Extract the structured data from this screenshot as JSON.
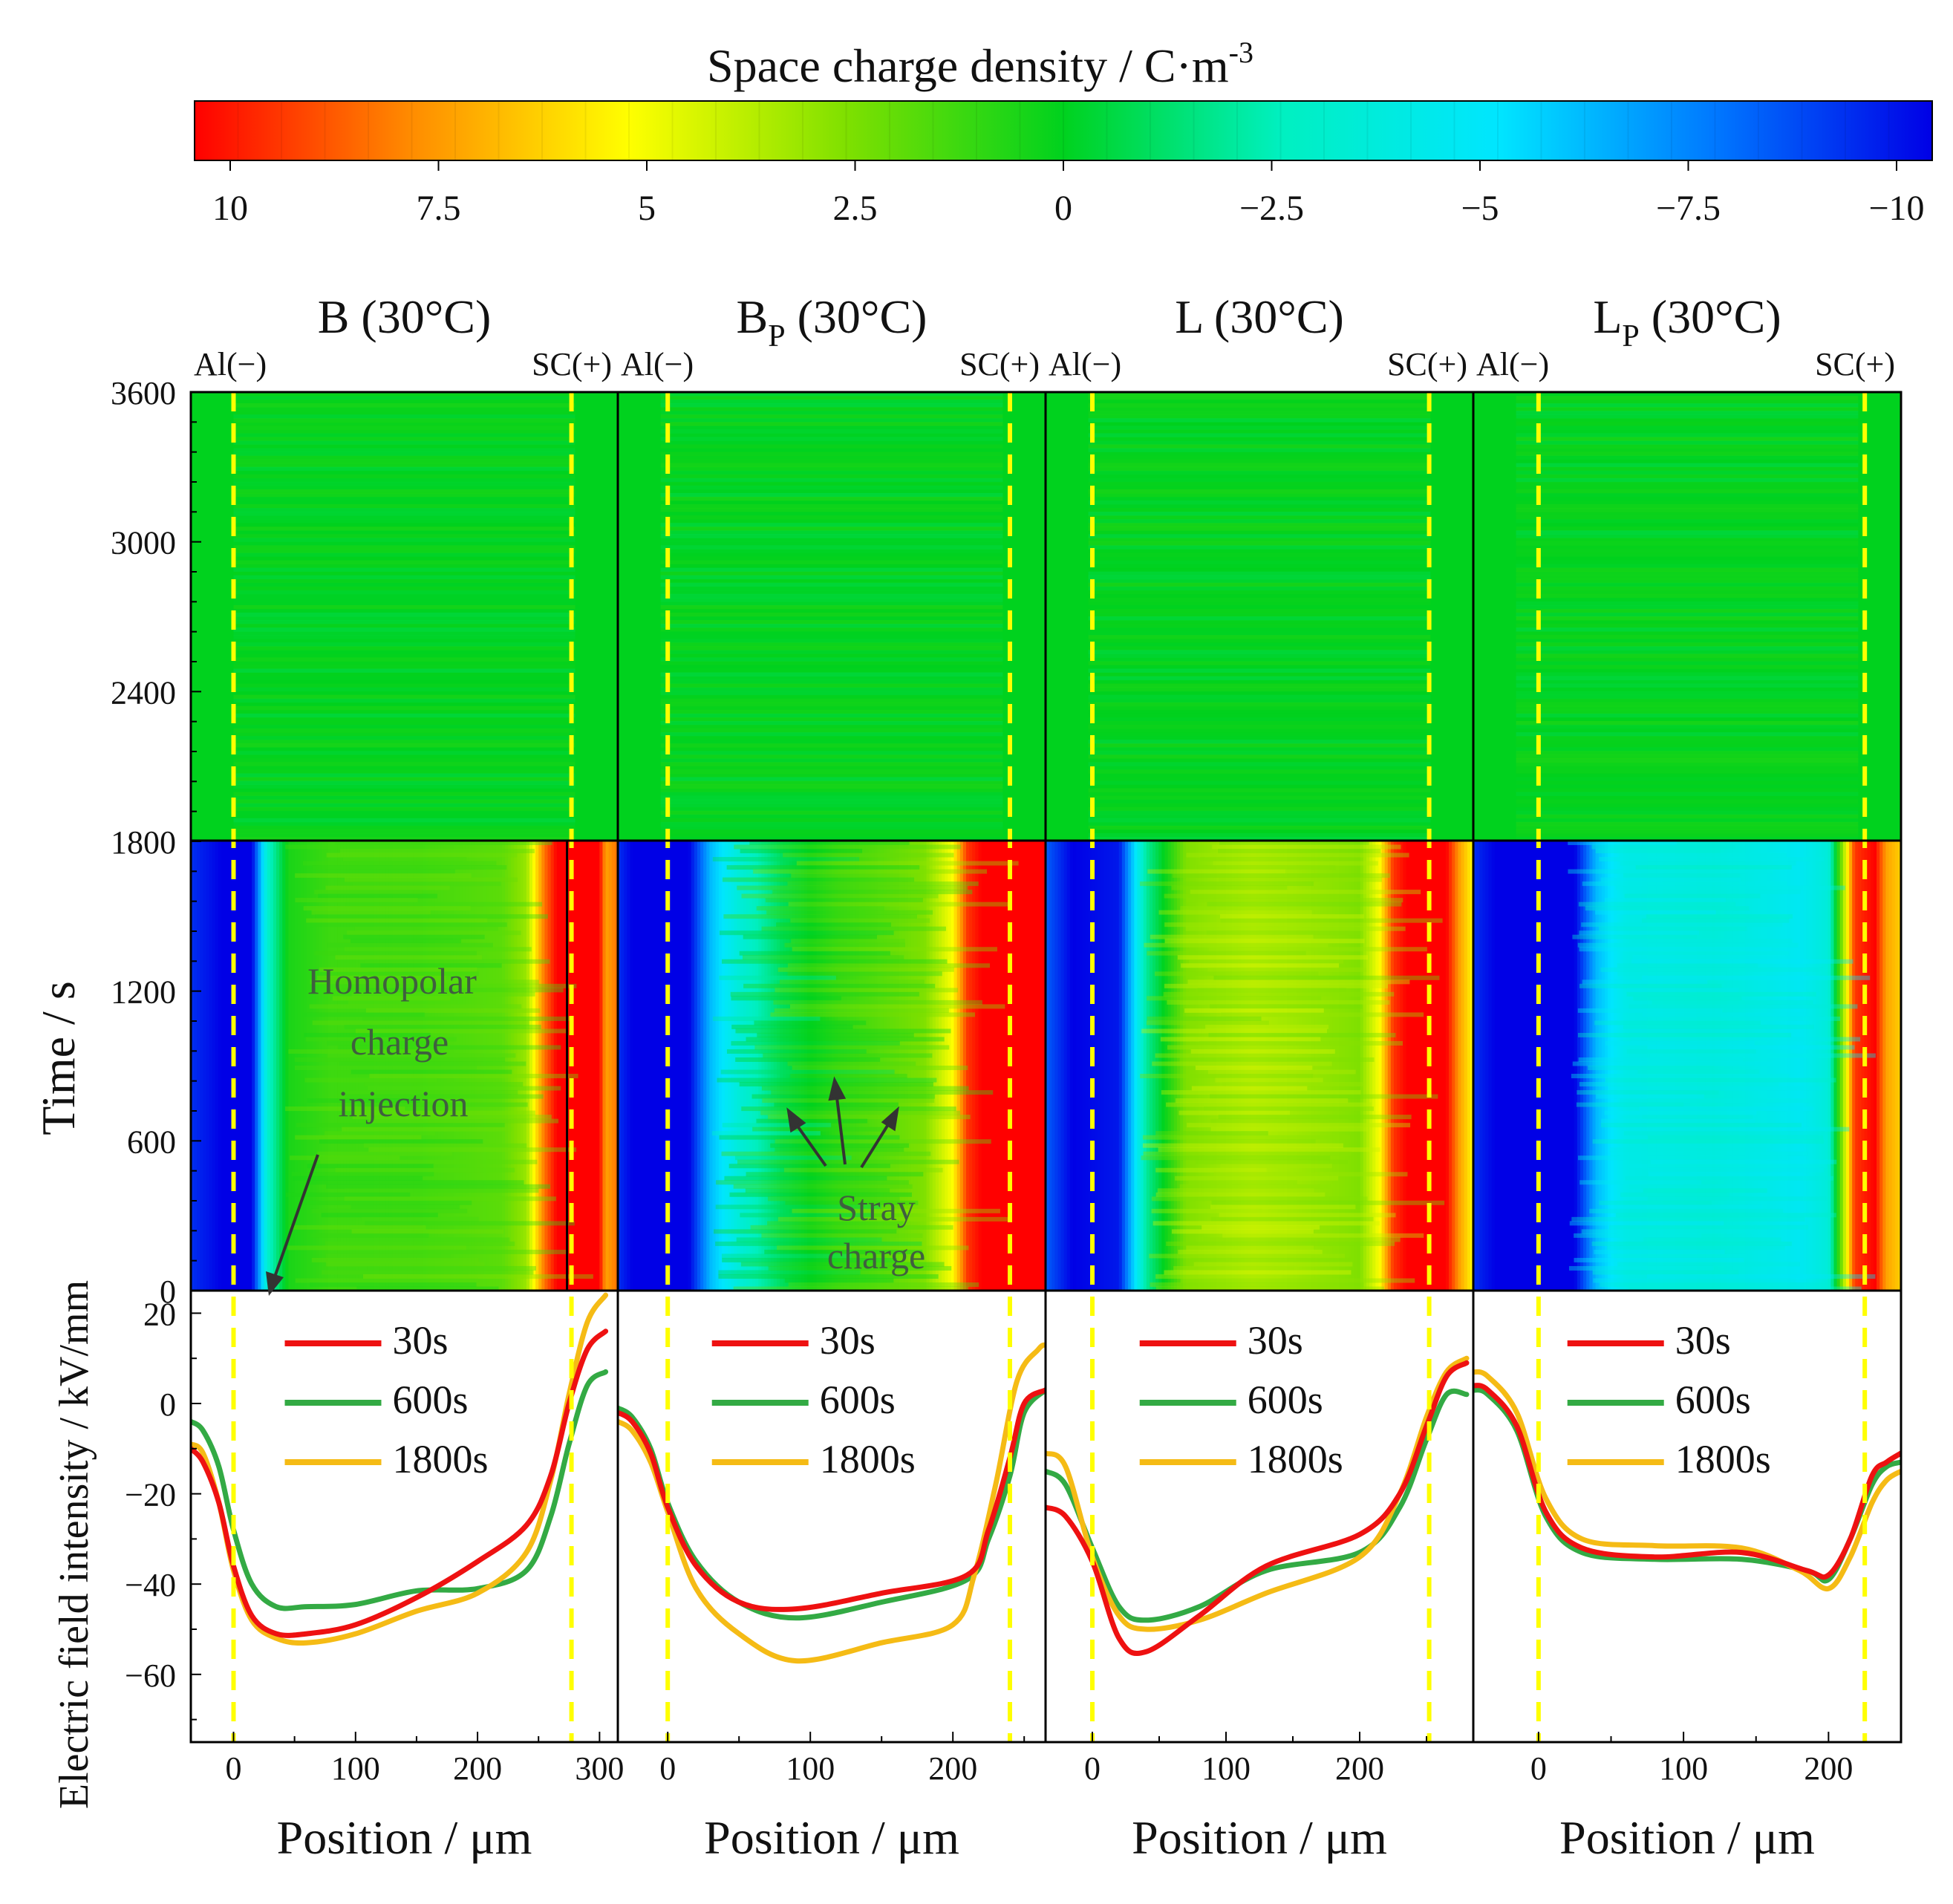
{
  "colorbar": {
    "title": "Space charge density / C·m",
    "title_sup": "-3",
    "min": -10,
    "max": 10,
    "ticks": [
      {
        "v": 10,
        "label": "10"
      },
      {
        "v": 7.5,
        "label": "7.5"
      },
      {
        "v": 5,
        "label": "5"
      },
      {
        "v": 2.5,
        "label": "2.5"
      },
      {
        "v": 0,
        "label": "0"
      },
      {
        "v": -2.5,
        "label": "−2.5"
      },
      {
        "v": -5,
        "label": "−5"
      },
      {
        "v": -7.5,
        "label": "−7.5"
      },
      {
        "v": -10,
        "label": "−10"
      }
    ],
    "colors": [
      "#ff0000",
      "#ff8c00",
      "#ffff00",
      "#7fe000",
      "#00d21e",
      "#00f0c0",
      "#00e6ff",
      "#0078ff",
      "#0000e6"
    ]
  },
  "axes": {
    "time_label": "Time / s",
    "field_label": "Electric field intensity / kV/mm",
    "position_label": "Position / μm",
    "time_ticks": [
      {
        "v": 0,
        "label": "0"
      },
      {
        "v": 600,
        "label": "600"
      },
      {
        "v": 1200,
        "label": "1200"
      },
      {
        "v": 1800,
        "label": "1800"
      },
      {
        "v": 2400,
        "label": "2400"
      },
      {
        "v": 3000,
        "label": "3000"
      },
      {
        "v": 3600,
        "label": "3600"
      }
    ],
    "field_ticks": [
      {
        "v": 20,
        "label": "20"
      },
      {
        "v": 0,
        "label": "0"
      },
      {
        "v": -20,
        "label": "−20"
      },
      {
        "v": -40,
        "label": "−40"
      },
      {
        "v": -60,
        "label": "−60"
      }
    ],
    "field_range": [
      -75,
      25
    ]
  },
  "electrodes": {
    "left": "Al(−)",
    "right": "SC(+)"
  },
  "legend": [
    {
      "name": "30s",
      "color": "#ee1111"
    },
    {
      "name": "600s",
      "color": "#33aa44"
    },
    {
      "name": "1800s",
      "color": "#f5bb15"
    }
  ],
  "annotations": {
    "homopolar": [
      "Homopolar",
      "charge",
      "injection"
    ],
    "stray": [
      "Stray",
      "charge"
    ]
  },
  "chart_data": [
    {
      "type": "heatmap+line",
      "title": "B (30°C)",
      "title_main": "B",
      "title_sub": "",
      "title_tail": " (30°C)",
      "xlim": [
        -35,
        315
      ],
      "x_ticks": [
        {
          "v": 0,
          "label": "0"
        },
        {
          "v": 100,
          "label": "100"
        },
        {
          "v": 200,
          "label": "200"
        },
        {
          "v": 300,
          "label": "300"
        }
      ],
      "electrodes_at": [
        0,
        277
      ],
      "heatmap_profile": [
        [
          -35,
          -9
        ],
        [
          -10,
          -10
        ],
        [
          15,
          -10
        ],
        [
          28,
          -3
        ],
        [
          45,
          0.5
        ],
        [
          80,
          1.2
        ],
        [
          150,
          1.3
        ],
        [
          220,
          1.8
        ],
        [
          240,
          3
        ],
        [
          255,
          8
        ],
        [
          265,
          10
        ],
        [
          300,
          10
        ],
        [
          305,
          7
        ],
        [
          315,
          8
        ]
      ],
      "series": [
        {
          "name": "30s",
          "points": [
            [
              -35,
              -10
            ],
            [
              -25,
              -13
            ],
            [
              -12,
              -22
            ],
            [
              0,
              -36
            ],
            [
              15,
              -47
            ],
            [
              35,
              -51
            ],
            [
              60,
              -51
            ],
            [
              100,
              -49
            ],
            [
              150,
              -43
            ],
            [
              200,
              -35
            ],
            [
              240,
              -27
            ],
            [
              260,
              -16
            ],
            [
              275,
              0
            ],
            [
              290,
              12
            ],
            [
              305,
              16
            ]
          ]
        },
        {
          "name": "600s",
          "points": [
            [
              -35,
              -4
            ],
            [
              -25,
              -6
            ],
            [
              -12,
              -14
            ],
            [
              0,
              -28
            ],
            [
              15,
              -40
            ],
            [
              35,
              -45
            ],
            [
              60,
              -45
            ],
            [
              100,
              -44.5
            ],
            [
              150,
              -41.5
            ],
            [
              200,
              -41
            ],
            [
              240,
              -37
            ],
            [
              260,
              -25
            ],
            [
              275,
              -9
            ],
            [
              290,
              4
            ],
            [
              305,
              7
            ]
          ]
        },
        {
          "name": "1800s",
          "points": [
            [
              -35,
              -9
            ],
            [
              -25,
              -11
            ],
            [
              -12,
              -22
            ],
            [
              0,
              -37
            ],
            [
              15,
              -48
            ],
            [
              35,
              -52
            ],
            [
              60,
              -53
            ],
            [
              100,
              -51
            ],
            [
              150,
              -46
            ],
            [
              200,
              -42
            ],
            [
              240,
              -33
            ],
            [
              260,
              -17
            ],
            [
              275,
              2
            ],
            [
              290,
              18
            ],
            [
              305,
              24
            ]
          ]
        }
      ]
    },
    {
      "type": "heatmap+line",
      "title": "BP (30°C)",
      "title_main": "B",
      "title_sub": "P",
      "title_tail": " (30°C)",
      "xlim": [
        -35,
        265
      ],
      "x_ticks": [
        {
          "v": 0,
          "label": "0"
        },
        {
          "v": 100,
          "label": "100"
        },
        {
          "v": 200,
          "label": "200"
        }
      ],
      "electrodes_at": [
        0,
        240
      ],
      "heatmap_profile": [
        [
          -35,
          -9
        ],
        [
          -25,
          -10
        ],
        [
          15,
          -10
        ],
        [
          30,
          -6
        ],
        [
          50,
          -3.5
        ],
        [
          80,
          -1
        ],
        [
          120,
          1
        ],
        [
          180,
          2.5
        ],
        [
          200,
          5
        ],
        [
          210,
          9
        ],
        [
          220,
          10
        ],
        [
          265,
          10
        ]
      ],
      "series": [
        {
          "name": "30s",
          "points": [
            [
              -35,
              -2
            ],
            [
              -25,
              -4
            ],
            [
              -12,
              -11
            ],
            [
              0,
              -23
            ],
            [
              20,
              -36
            ],
            [
              50,
              -44
            ],
            [
              90,
              -45.5
            ],
            [
              150,
              -42
            ],
            [
              210,
              -38
            ],
            [
              225,
              -28
            ],
            [
              240,
              -12
            ],
            [
              250,
              0
            ],
            [
              265,
              3
            ]
          ]
        },
        {
          "name": "600s",
          "points": [
            [
              -35,
              -1
            ],
            [
              -25,
              -3
            ],
            [
              -12,
              -10
            ],
            [
              0,
              -22
            ],
            [
              20,
              -35
            ],
            [
              50,
              -44
            ],
            [
              90,
              -47.5
            ],
            [
              150,
              -44
            ],
            [
              210,
              -39
            ],
            [
              225,
              -30
            ],
            [
              240,
              -16
            ],
            [
              250,
              -2
            ],
            [
              265,
              3
            ]
          ]
        },
        {
          "name": "1800s",
          "points": [
            [
              -35,
              -4
            ],
            [
              -25,
              -6
            ],
            [
              -12,
              -13
            ],
            [
              0,
              -24
            ],
            [
              20,
              -41
            ],
            [
              50,
              -51
            ],
            [
              90,
              -57
            ],
            [
              150,
              -53
            ],
            [
              200,
              -49
            ],
            [
              215,
              -38
            ],
            [
              230,
              -18
            ],
            [
              245,
              5
            ],
            [
              260,
              12
            ],
            [
              265,
              13
            ]
          ]
        }
      ]
    },
    {
      "type": "heatmap+line",
      "title": "L (30°C)",
      "title_main": "L",
      "title_sub": "",
      "title_tail": " (30°C)",
      "xlim": [
        -35,
        285
      ],
      "x_ticks": [
        {
          "v": 0,
          "label": "0"
        },
        {
          "v": 100,
          "label": "100"
        },
        {
          "v": 200,
          "label": "200"
        }
      ],
      "electrodes_at": [
        0,
        252
      ],
      "heatmap_profile": [
        [
          -35,
          -8
        ],
        [
          -15,
          -10
        ],
        [
          20,
          -9.5
        ],
        [
          40,
          -2
        ],
        [
          70,
          2.5
        ],
        [
          120,
          3.5
        ],
        [
          200,
          2.5
        ],
        [
          215,
          5
        ],
        [
          225,
          9
        ],
        [
          235,
          10
        ],
        [
          265,
          10
        ],
        [
          275,
          7
        ],
        [
          285,
          5
        ]
      ],
      "series": [
        {
          "name": "30s",
          "points": [
            [
              -35,
              -23
            ],
            [
              -20,
              -25
            ],
            [
              0,
              -35
            ],
            [
              20,
              -52
            ],
            [
              40,
              -55
            ],
            [
              80,
              -47
            ],
            [
              130,
              -36
            ],
            [
              200,
              -29
            ],
            [
              230,
              -20
            ],
            [
              250,
              -5
            ],
            [
              265,
              6
            ],
            [
              280,
              9
            ]
          ]
        },
        {
          "name": "600s",
          "points": [
            [
              -35,
              -15
            ],
            [
              -20,
              -18
            ],
            [
              0,
              -32
            ],
            [
              20,
              -45
            ],
            [
              40,
              -48
            ],
            [
              80,
              -45
            ],
            [
              130,
              -37
            ],
            [
              200,
              -33
            ],
            [
              230,
              -23
            ],
            [
              250,
              -8
            ],
            [
              265,
              2
            ],
            [
              280,
              2
            ]
          ]
        },
        {
          "name": "1800s",
          "points": [
            [
              -35,
              -11
            ],
            [
              -20,
              -14
            ],
            [
              0,
              -34
            ],
            [
              20,
              -47
            ],
            [
              40,
              -50
            ],
            [
              80,
              -48
            ],
            [
              130,
              -42
            ],
            [
              200,
              -34
            ],
            [
              230,
              -20
            ],
            [
              250,
              -3
            ],
            [
              265,
              7
            ],
            [
              280,
              10
            ]
          ]
        }
      ]
    },
    {
      "type": "heatmap+line",
      "title": "LP (30°C)",
      "title_main": "L",
      "title_sub": "P",
      "title_tail": " (30°C)",
      "xlim": [
        -45,
        250
      ],
      "x_ticks": [
        {
          "v": 0,
          "label": "0"
        },
        {
          "v": 100,
          "label": "100"
        },
        {
          "v": 200,
          "label": "200"
        }
      ],
      "electrodes_at": [
        0,
        225
      ],
      "heatmap_profile": [
        [
          -45,
          -9
        ],
        [
          -30,
          -10
        ],
        [
          25,
          -10
        ],
        [
          40,
          -6
        ],
        [
          60,
          -4
        ],
        [
          120,
          -3.5
        ],
        [
          180,
          -4.5
        ],
        [
          200,
          -3.5
        ],
        [
          210,
          3
        ],
        [
          218,
          9
        ],
        [
          232,
          10
        ],
        [
          240,
          7
        ],
        [
          250,
          6
        ]
      ],
      "series": [
        {
          "name": "30s",
          "points": [
            [
              -45,
              4
            ],
            [
              -35,
              3
            ],
            [
              -15,
              -5
            ],
            [
              5,
              -24
            ],
            [
              30,
              -32
            ],
            [
              80,
              -34
            ],
            [
              140,
              -33
            ],
            [
              185,
              -37
            ],
            [
              200,
              -38
            ],
            [
              215,
              -30
            ],
            [
              230,
              -16
            ],
            [
              240,
              -13
            ],
            [
              250,
              -11
            ]
          ]
        },
        {
          "name": "600s",
          "points": [
            [
              -45,
              3
            ],
            [
              -35,
              2
            ],
            [
              -15,
              -6
            ],
            [
              5,
              -25
            ],
            [
              30,
              -33
            ],
            [
              80,
              -34.5
            ],
            [
              140,
              -34.5
            ],
            [
              185,
              -37
            ],
            [
              200,
              -39
            ],
            [
              215,
              -30
            ],
            [
              230,
              -18
            ],
            [
              240,
              -14
            ],
            [
              250,
              -13
            ]
          ]
        },
        {
          "name": "1800s",
          "points": [
            [
              -45,
              7
            ],
            [
              -35,
              6
            ],
            [
              -15,
              -2
            ],
            [
              5,
              -21
            ],
            [
              30,
              -30
            ],
            [
              80,
              -31.5
            ],
            [
              140,
              -32
            ],
            [
              180,
              -37
            ],
            [
              200,
              -41
            ],
            [
              215,
              -34
            ],
            [
              230,
              -22
            ],
            [
              240,
              -17
            ],
            [
              250,
              -15
            ]
          ]
        }
      ]
    }
  ]
}
